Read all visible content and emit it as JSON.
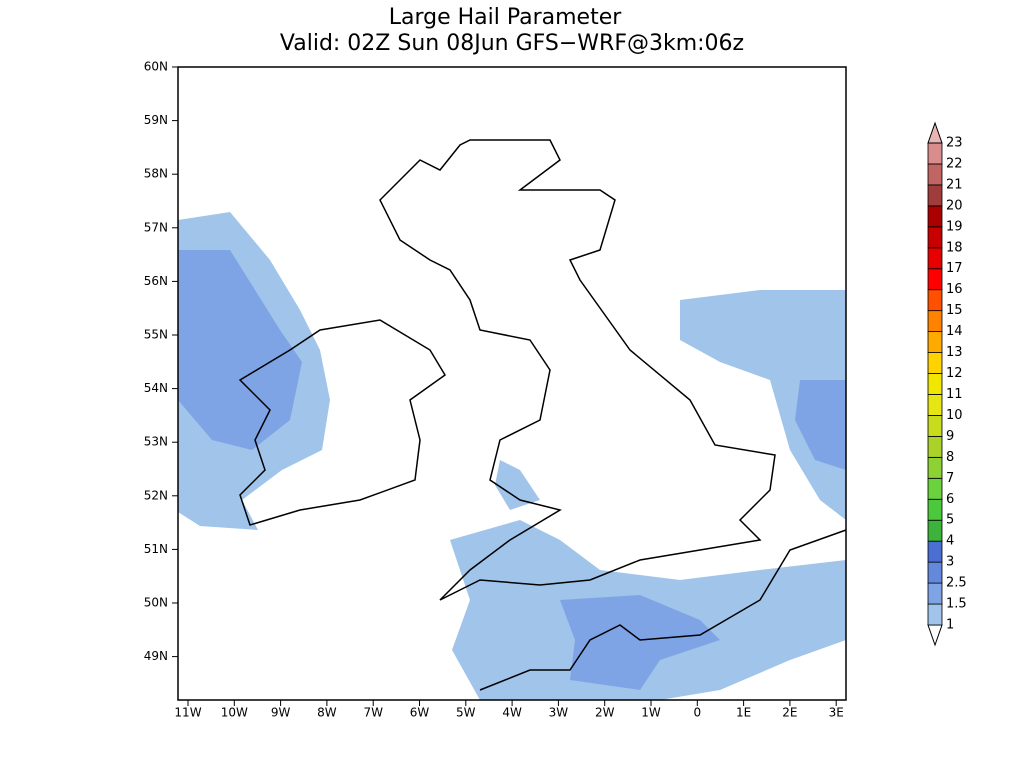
{
  "map": {
    "title_line1": "Large Hail Parameter",
    "title_line2": "Valid: 02Z Sun 08Jun GFS−WRF@3km:06z",
    "lat_labels": [
      "60N",
      "59N",
      "58N",
      "57N",
      "56N",
      "55N",
      "54N",
      "53N",
      "52N",
      "51N",
      "50N",
      "49N"
    ],
    "lon_labels": [
      "11W",
      "10W",
      "9W",
      "8W",
      "7W",
      "6W",
      "5W",
      "4W",
      "3W",
      "2W",
      "1W",
      "0",
      "1E",
      "2E",
      "3E"
    ],
    "colorbar": {
      "labels": [
        "1",
        "1.5",
        "2.5",
        "3",
        "4",
        "5",
        "6",
        "7",
        "8",
        "9",
        "10",
        "11",
        "12",
        "13",
        "14",
        "15",
        "16",
        "17",
        "18",
        "19",
        "20",
        "21",
        "22",
        "23"
      ],
      "below_color": "#ffffff",
      "colors": [
        "#a0c4ea",
        "#7ea4e6",
        "#6489dc",
        "#4a6ed2",
        "#3cb43c",
        "#4cc83c",
        "#6ad23c",
        "#8cd232",
        "#aad228",
        "#c8dc1e",
        "#e6e614",
        "#f0e600",
        "#ffd200",
        "#ffaa00",
        "#ff8200",
        "#ff5000",
        "#ff0000",
        "#e60000",
        "#c80000",
        "#aa0000",
        "#a03c3c",
        "#c06464",
        "#d88c8c"
      ],
      "above_color": "#e8b4b4"
    }
  }
}
